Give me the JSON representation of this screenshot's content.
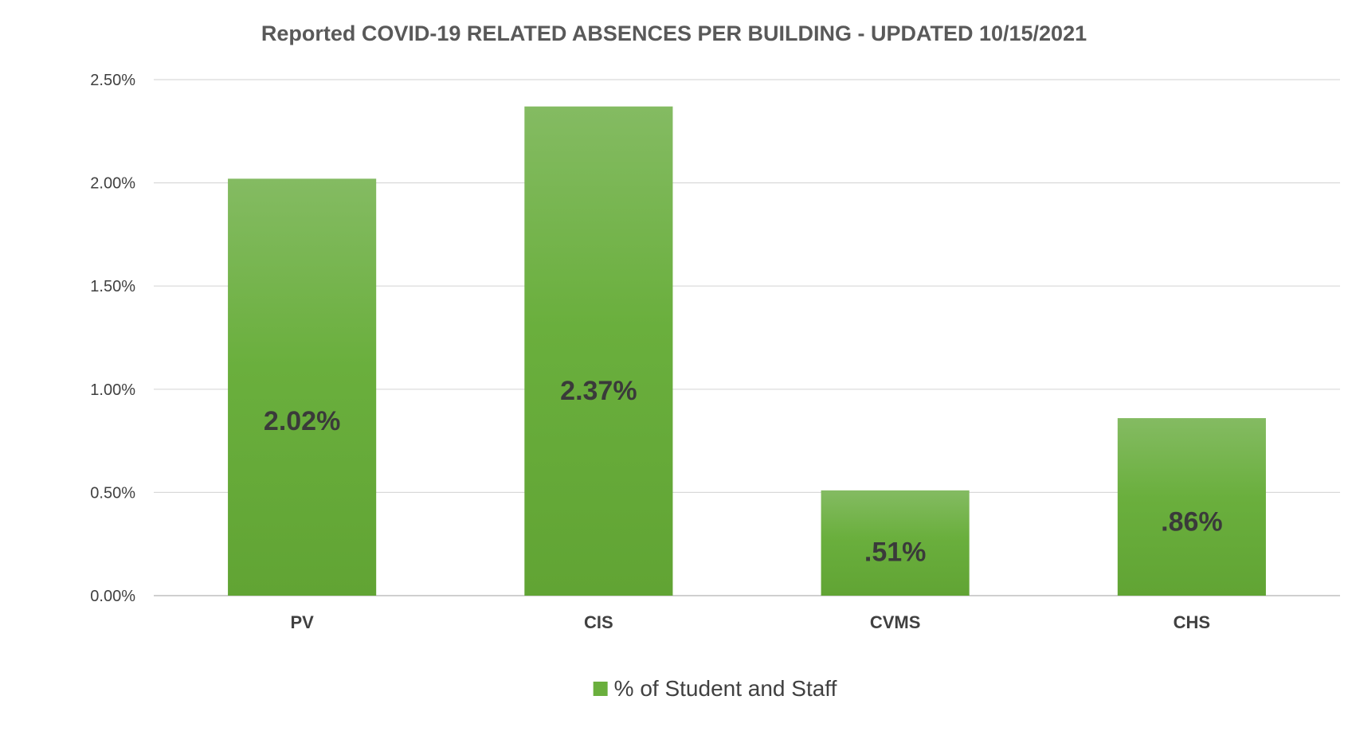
{
  "chart_data": {
    "type": "bar",
    "title": "Reported COVID-19 RELATED ABSENCES PER BUILDING - UPDATED 10/15/2021",
    "categories": [
      "PV",
      "CIS",
      "CVMS",
      "CHS"
    ],
    "series": [
      {
        "name": "% of Student and Staff",
        "values": [
          2.02,
          2.37,
          0.51,
          0.86
        ],
        "data_labels": [
          "2.02%",
          "2.37%",
          ".51%",
          ".86%"
        ],
        "color": "#6aaf3d",
        "color_light": "#84bb62",
        "color_dark": "#61a434"
      }
    ],
    "ylim": [
      0,
      2.5
    ],
    "yticks": [
      0,
      0.5,
      1.0,
      1.5,
      2.0,
      2.5
    ],
    "ytick_labels": [
      "0.00%",
      "0.50%",
      "1.00%",
      "1.50%",
      "2.00%",
      "2.50%"
    ],
    "xlabel": "",
    "ylabel": "",
    "grid": true,
    "legend": "bottom-center"
  }
}
